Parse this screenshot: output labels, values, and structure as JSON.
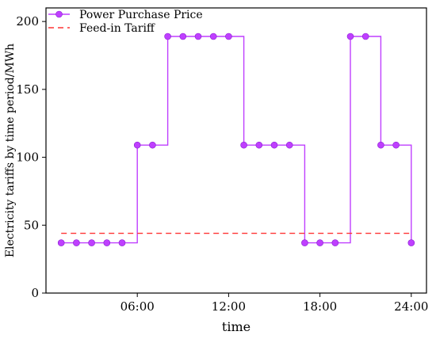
{
  "chart_data": {
    "type": "line",
    "xlabel": "time",
    "ylabel": "Electricity tariffs by time period/MWh",
    "xlim": [
      0,
      25
    ],
    "ylim": [
      0,
      210
    ],
    "x_ticks": [
      {
        "value": 6,
        "label": "06:00"
      },
      {
        "value": 12,
        "label": "12:00"
      },
      {
        "value": 18,
        "label": "18:00"
      },
      {
        "value": 24,
        "label": "24:00"
      }
    ],
    "y_ticks": [
      0,
      50,
      100,
      150,
      200
    ],
    "grid": false,
    "legend_position": "top-left",
    "series": [
      {
        "name": "Power Purchase Price",
        "style": "step",
        "color": "#bf3fff",
        "marker": "circle",
        "x": [
          1,
          2,
          3,
          4,
          5,
          6,
          7,
          8,
          9,
          10,
          11,
          12,
          13,
          14,
          15,
          16,
          17,
          18,
          19,
          20,
          21,
          22,
          23,
          24
        ],
        "values": [
          37,
          37,
          37,
          37,
          37,
          109,
          109,
          189,
          189,
          189,
          189,
          189,
          109,
          109,
          109,
          109,
          37,
          37,
          37,
          189,
          189,
          109,
          109,
          37
        ]
      },
      {
        "name": "Feed-in Tariff",
        "style": "dashed",
        "color": "#ff3333",
        "x": [
          1,
          24
        ],
        "values": [
          44,
          44
        ]
      }
    ]
  }
}
